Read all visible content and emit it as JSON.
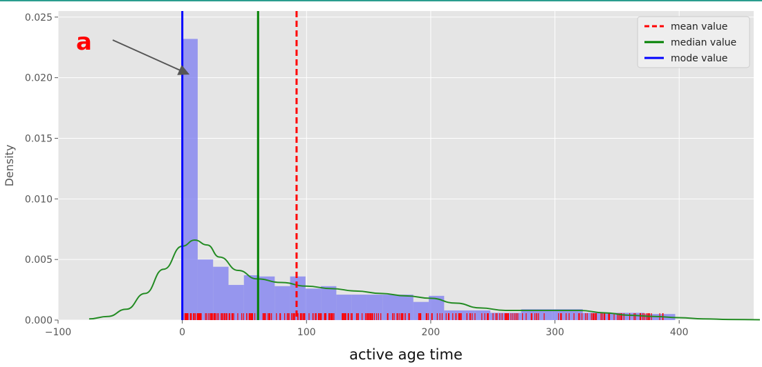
{
  "chart_data": {
    "type": "histogram",
    "xlabel": "active age time",
    "ylabel": "Density",
    "xlim": [
      -100,
      460
    ],
    "ylim": [
      0,
      0.0255
    ],
    "x_ticks": [
      -100,
      0,
      100,
      200,
      300,
      400
    ],
    "x_tick_labels": [
      "−100",
      "0",
      "100",
      "200",
      "300",
      "400"
    ],
    "y_ticks": [
      0.0,
      0.005,
      0.01,
      0.015,
      0.02,
      0.025
    ],
    "y_tick_labels": [
      "0.000",
      "0.005",
      "0.010",
      "0.015",
      "0.020",
      "0.025"
    ],
    "grid": true,
    "legend_position": "top-right",
    "colors": {
      "background": "#e5e5e5",
      "grid": "#ffffff",
      "hist": "#7b7bf0",
      "kde": "#228b22",
      "rug": "#ff0000",
      "mean": "#ff0000",
      "median": "#008000",
      "mode": "#0000ff",
      "annotation": "#ff0000",
      "arrow": "#555555"
    },
    "histogram": {
      "bin_edges": [
        0,
        12.4,
        24.8,
        37.2,
        49.6,
        62.0,
        74.4,
        86.8,
        99.2,
        111.6,
        124.0,
        136.4,
        148.8,
        161.2,
        173.6,
        186.0,
        198.4,
        210.8,
        223.2,
        235.6,
        248.0,
        260.4,
        272.8,
        285.2,
        297.6,
        310.0,
        322.4,
        334.8,
        347.2,
        359.6,
        372.0,
        384.4,
        396.8
      ],
      "densities": [
        0.0232,
        0.005,
        0.0044,
        0.0029,
        0.0037,
        0.0036,
        0.0028,
        0.0036,
        0.0026,
        0.0028,
        0.0021,
        0.0021,
        0.0021,
        0.0021,
        0.0021,
        0.0015,
        0.002,
        0.0008,
        0.0008,
        0.0008,
        0.0006,
        0.0006,
        0.0009,
        0.0009,
        0.0009,
        0.0009,
        0.0006,
        0.0006,
        0.0006,
        0.0006,
        0.0005,
        0.0005
      ]
    },
    "kde": {
      "name": "",
      "x": [
        -75,
        -60,
        -45,
        -30,
        -15,
        0,
        10,
        20,
        30,
        45,
        60,
        80,
        100,
        120,
        140,
        160,
        180,
        200,
        220,
        240,
        260,
        280,
        300,
        320,
        340,
        360,
        380,
        400,
        420,
        440,
        465
      ],
      "y": [
        0.0001,
        0.0003,
        0.0009,
        0.0022,
        0.0042,
        0.0061,
        0.0066,
        0.0062,
        0.0052,
        0.0041,
        0.0034,
        0.0031,
        0.0028,
        0.0026,
        0.0024,
        0.0022,
        0.002,
        0.0018,
        0.0014,
        0.001,
        0.0008,
        0.0008,
        0.0008,
        0.0008,
        0.0006,
        0.0004,
        0.0003,
        0.0002,
        0.0001,
        5e-05,
        3e-05
      ]
    },
    "rug": {
      "range": [
        0,
        392
      ],
      "count": 300
    },
    "vlines": [
      {
        "name": "mean value",
        "x": 92,
        "style": "dashed",
        "color": "#ff0000"
      },
      {
        "name": "median value",
        "x": 61,
        "style": "solid",
        "color": "#008000"
      },
      {
        "name": "mode value",
        "x": 0,
        "style": "solid",
        "color": "#0000ff"
      }
    ],
    "legend": [
      "mean value",
      "median value",
      "mode value"
    ],
    "annotation": {
      "text": "a",
      "points_to": {
        "x": 5,
        "y": 0.0203
      }
    }
  }
}
